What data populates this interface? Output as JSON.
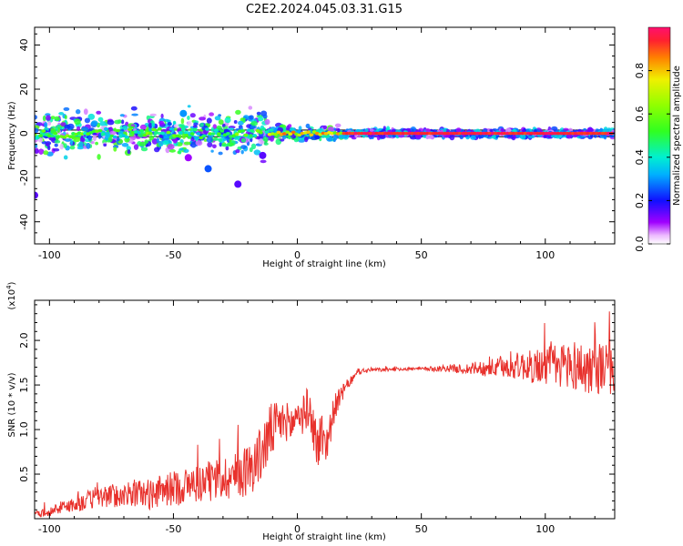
{
  "title": "C2E2.2024.045.03.31.G15",
  "colors": {
    "snr_line": "#e8312c",
    "frame": "#000000",
    "zero_band": "#000000"
  },
  "colorbar": {
    "label": "Normalized spectral amplitude",
    "ticks": [
      "0.0",
      "0.2",
      "0.4",
      "0.6",
      "0.8"
    ],
    "tick_values": [
      0.0,
      0.2,
      0.4,
      0.6,
      0.8
    ],
    "range": [
      0,
      1
    ]
  },
  "chart_data": [
    {
      "type": "heatmap",
      "title": "",
      "xlabel": "Height of straight line (km)",
      "ylabel": "Frequency (Hz)",
      "xlim": [
        -106,
        128
      ],
      "ylim": [
        -50,
        48
      ],
      "xticks": [
        "-100",
        "-50",
        "0",
        "50",
        "100"
      ],
      "xtick_values": [
        -100,
        -50,
        0,
        50,
        100
      ],
      "yticks": [
        "40",
        "20",
        "0",
        "-20",
        "-40"
      ],
      "ytick_values": [
        40,
        20,
        0,
        -20,
        -40
      ],
      "band": {
        "x_start": -106,
        "x_end": 128,
        "center_hz": 0
      },
      "features": [
        {
          "x": -106,
          "hz": -28,
          "amp": 0.15
        },
        {
          "x": -46,
          "hz": 9,
          "amp": 0.3
        },
        {
          "x": -44,
          "hz": -11,
          "amp": 0.1
        },
        {
          "x": -36,
          "hz": -16,
          "amp": 0.25
        },
        {
          "x": -24,
          "hz": -23,
          "amp": 0.15
        },
        {
          "x": -14,
          "hz": -10,
          "amp": 0.15
        }
      ]
    },
    {
      "type": "line",
      "title": "",
      "xlabel": "Height of straight line (km)",
      "ylabel": "SNR (10 * v/v)",
      "y_multiplier": "(x10",
      "y_multiplier_exp": "4",
      "xlim": [
        -106,
        128
      ],
      "ylim": [
        0,
        24500
      ],
      "xticks": [
        "-100",
        "-50",
        "0",
        "50",
        "100"
      ],
      "xtick_values": [
        -100,
        -50,
        0,
        50,
        100
      ],
      "yticks": [
        "0.5",
        "1.0",
        "1.5",
        "2.0"
      ],
      "ytick_values": [
        5000,
        10000,
        15000,
        20000
      ],
      "series": [
        {
          "x": [
            -106,
            -100,
            -95,
            -90,
            -85,
            -80,
            -75,
            -70,
            -65,
            -60,
            -55,
            -50,
            -45,
            -40,
            -35,
            -30,
            -25,
            -20,
            -15,
            -12,
            -10,
            -8,
            -5,
            -2,
            0,
            2,
            4,
            6,
            8,
            10,
            12,
            15,
            20,
            25,
            30,
            35,
            40,
            45,
            50,
            55,
            60,
            65,
            70,
            75,
            80,
            85,
            90,
            95,
            100,
            105,
            110,
            115,
            120,
            125,
            128
          ],
          "values": [
            500,
            800,
            1300,
            1600,
            2000,
            2400,
            2600,
            2600,
            2900,
            2700,
            3100,
            3400,
            3700,
            4000,
            4200,
            4600,
            4800,
            5500,
            7000,
            9000,
            10000,
            10500,
            11000,
            10500,
            12000,
            11500,
            12500,
            11000,
            8000,
            9500,
            8500,
            12500,
            15000,
            16500,
            16700,
            16700,
            16800,
            16800,
            16800,
            16800,
            16900,
            16800,
            16800,
            16900,
            16900,
            17000,
            17200,
            17000,
            17300,
            17000,
            17500,
            16800,
            17000,
            16800,
            16500
          ],
          "noise": [
            400,
            500,
            700,
            900,
            1100,
            1200,
            1300,
            1400,
            1600,
            1700,
            1800,
            2000,
            2100,
            2200,
            2300,
            2500,
            2700,
            3000,
            3200,
            3400,
            3200,
            2600,
            2200,
            2200,
            2200,
            2200,
            2200,
            2400,
            3000,
            3000,
            2200,
            1500,
            600,
            350,
            250,
            200,
            200,
            200,
            200,
            300,
            400,
            500,
            700,
            900,
            1100,
            1300,
            1600,
            1900,
            2200,
            2600,
            2900,
            3000,
            3000,
            2900,
            2800
          ]
        }
      ]
    }
  ]
}
